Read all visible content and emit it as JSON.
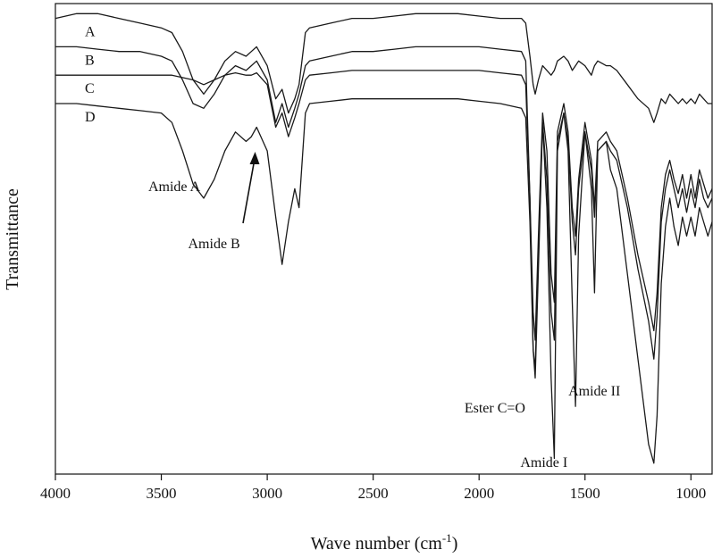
{
  "chart_data": {
    "type": "line",
    "xlabel": "Wave number (cm",
    "xlabel_sup": "-1",
    "xlabel_end": ")",
    "ylabel": "Transmittance",
    "xlim": [
      4000,
      900
    ],
    "ylim": [
      0,
      100
    ],
    "x_reversed": true,
    "grid": false,
    "xticks": [
      4000,
      3500,
      3000,
      2500,
      2000,
      1500,
      1000
    ],
    "series": [
      {
        "name": "A",
        "x": [
          4000,
          3900,
          3800,
          3700,
          3600,
          3500,
          3450,
          3400,
          3350,
          3300,
          3250,
          3200,
          3150,
          3100,
          3075,
          3050,
          3000,
          2960,
          2930,
          2900,
          2870,
          2850,
          2820,
          2800,
          2700,
          2600,
          2500,
          2400,
          2300,
          2200,
          2100,
          2000,
          1900,
          1800,
          1780,
          1760,
          1745,
          1735,
          1720,
          1700,
          1680,
          1660,
          1645,
          1630,
          1600,
          1580,
          1560,
          1545,
          1530,
          1500,
          1470,
          1455,
          1440,
          1400,
          1380,
          1350,
          1300,
          1250,
          1200,
          1175,
          1160,
          1140,
          1120,
          1100,
          1080,
          1060,
          1040,
          1020,
          1000,
          980,
          960,
          940,
          920,
          900
        ],
        "y": [
          98,
          99,
          99,
          98,
          97,
          96,
          95,
          91,
          85,
          82,
          85,
          89,
          91,
          90,
          91,
          92,
          88,
          81,
          83,
          78,
          81,
          84,
          95,
          96,
          97,
          98,
          98,
          98.5,
          99,
          99,
          99,
          98.5,
          98,
          98,
          97,
          90,
          84,
          82,
          85,
          88,
          87,
          86,
          87,
          89,
          90,
          89,
          87,
          88,
          89,
          88,
          86,
          88,
          89,
          88,
          88,
          87,
          84,
          81,
          79,
          76,
          78,
          81,
          80,
          82,
          81,
          80,
          81,
          80,
          81,
          80,
          82,
          81,
          80,
          80
        ]
      },
      {
        "name": "B",
        "x": [
          4000,
          3900,
          3800,
          3700,
          3600,
          3500,
          3450,
          3400,
          3350,
          3300,
          3250,
          3200,
          3150,
          3100,
          3075,
          3050,
          3000,
          2960,
          2930,
          2900,
          2870,
          2850,
          2820,
          2800,
          2700,
          2600,
          2500,
          2400,
          2300,
          2200,
          2100,
          2000,
          1900,
          1800,
          1780,
          1760,
          1745,
          1735,
          1720,
          1700,
          1680,
          1660,
          1645,
          1630,
          1600,
          1580,
          1560,
          1545,
          1530,
          1500,
          1470,
          1455,
          1440,
          1400,
          1380,
          1350,
          1300,
          1250,
          1200,
          1175,
          1160,
          1140,
          1120,
          1100,
          1080,
          1060,
          1040,
          1020,
          1000,
          980,
          960,
          940,
          920,
          900
        ],
        "y": [
          92,
          92,
          91.5,
          91,
          91,
          90,
          89,
          85,
          80,
          79,
          82,
          86,
          88,
          87,
          88,
          89,
          85,
          76,
          80,
          75,
          79,
          82,
          88,
          89,
          90,
          91,
          91,
          91.5,
          92,
          92,
          92,
          92,
          91.5,
          91,
          89,
          60,
          28,
          24,
          48,
          76,
          64,
          36,
          30,
          72,
          78,
          72,
          55,
          48,
          62,
          74,
          66,
          56,
          70,
          72,
          70,
          68,
          58,
          45,
          34,
          26,
          35,
          55,
          62,
          66,
          62,
          58,
          62,
          57,
          62,
          58,
          64,
          60,
          58,
          60
        ]
      },
      {
        "name": "C",
        "x": [
          4000,
          3900,
          3800,
          3700,
          3600,
          3500,
          3450,
          3400,
          3350,
          3300,
          3250,
          3200,
          3150,
          3100,
          3075,
          3050,
          3000,
          2960,
          2930,
          2900,
          2870,
          2850,
          2820,
          2800,
          2700,
          2600,
          2500,
          2400,
          2300,
          2200,
          2100,
          2000,
          1900,
          1800,
          1780,
          1760,
          1745,
          1735,
          1720,
          1700,
          1680,
          1660,
          1645,
          1630,
          1600,
          1580,
          1560,
          1545,
          1530,
          1500,
          1470,
          1455,
          1440,
          1400,
          1380,
          1350,
          1300,
          1250,
          1200,
          1175,
          1160,
          1140,
          1120,
          1100,
          1080,
          1060,
          1040,
          1020,
          1000,
          980,
          960,
          940,
          920,
          900
        ],
        "y": [
          86,
          86,
          86,
          86,
          86,
          86,
          86,
          85.5,
          85,
          84,
          85,
          86,
          86.5,
          86,
          86,
          86.5,
          84,
          75,
          78,
          73,
          77,
          80,
          85,
          86,
          86.5,
          87,
          87,
          87,
          87,
          87,
          87,
          87,
          86.5,
          86,
          84,
          60,
          36,
          30,
          52,
          78,
          70,
          44,
          38,
          74,
          80,
          74,
          58,
          52,
          64,
          76,
          68,
          58,
          72,
          74,
          72,
          70,
          60,
          48,
          38,
          32,
          40,
          58,
          65,
          68,
          64,
          61,
          65,
          60,
          65,
          60,
          66,
          63,
          60,
          62
        ]
      },
      {
        "name": "D",
        "x": [
          4000,
          3900,
          3800,
          3700,
          3600,
          3500,
          3450,
          3400,
          3350,
          3300,
          3250,
          3200,
          3150,
          3100,
          3075,
          3050,
          3000,
          2960,
          2930,
          2900,
          2870,
          2850,
          2820,
          2800,
          2700,
          2600,
          2500,
          2400,
          2300,
          2200,
          2100,
          2000,
          1900,
          1800,
          1780,
          1760,
          1745,
          1735,
          1720,
          1700,
          1680,
          1660,
          1645,
          1630,
          1600,
          1580,
          1560,
          1545,
          1530,
          1500,
          1470,
          1455,
          1440,
          1400,
          1380,
          1350,
          1300,
          1250,
          1200,
          1175,
          1160,
          1140,
          1120,
          1100,
          1080,
          1060,
          1040,
          1020,
          1000,
          980,
          960,
          940,
          920,
          900
        ],
        "y": [
          80,
          80,
          79.5,
          79,
          78.5,
          78,
          76,
          70,
          63,
          60,
          64,
          70,
          74,
          72,
          73,
          75,
          70,
          56,
          46,
          55,
          62,
          58,
          78,
          80,
          80.5,
          81,
          81,
          81,
          81,
          81,
          81,
          80.5,
          80,
          79,
          77,
          55,
          28,
          22,
          45,
          76,
          58,
          22,
          5,
          70,
          78,
          70,
          38,
          16,
          52,
          74,
          62,
          40,
          70,
          72,
          66,
          62,
          44,
          26,
          8,
          4,
          14,
          42,
          54,
          60,
          54,
          50,
          56,
          52,
          56,
          52,
          58,
          55,
          52,
          55
        ]
      }
    ],
    "annotations": [
      {
        "text": "Amide A",
        "x": 3300
      },
      {
        "text": "Amide B",
        "x": 3070
      },
      {
        "text": "Ester C=O",
        "x": 1740
      },
      {
        "text": "Amide I",
        "x": 1645
      },
      {
        "text": "Amide II",
        "x": 1545
      }
    ]
  }
}
